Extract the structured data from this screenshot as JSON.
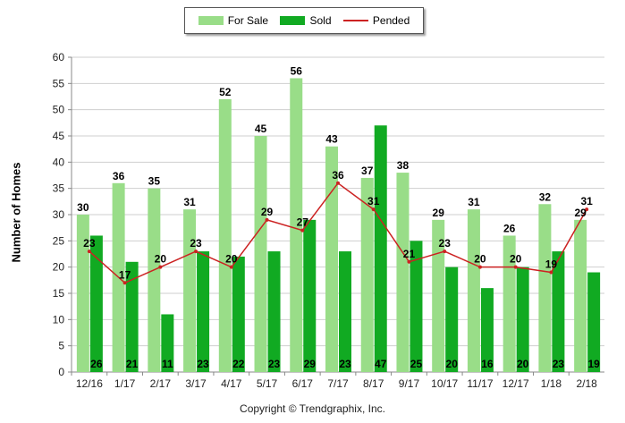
{
  "chart_data": {
    "type": "bar",
    "categories": [
      "12/16",
      "1/17",
      "2/17",
      "3/17",
      "4/17",
      "5/17",
      "6/17",
      "7/17",
      "8/17",
      "9/17",
      "10/17",
      "11/17",
      "12/17",
      "1/18",
      "2/18"
    ],
    "series": [
      {
        "name": "For Sale",
        "kind": "bar",
        "color": "#99dd88",
        "values": [
          30,
          36,
          35,
          31,
          52,
          45,
          56,
          43,
          37,
          38,
          29,
          31,
          26,
          32,
          29
        ]
      },
      {
        "name": "Sold",
        "kind": "bar",
        "color": "#11aa22",
        "values": [
          26,
          21,
          11,
          23,
          22,
          23,
          29,
          23,
          47,
          25,
          20,
          16,
          20,
          23,
          19
        ]
      },
      {
        "name": "Pended",
        "kind": "line",
        "color": "#cc2222",
        "values": [
          23,
          17,
          20,
          23,
          20,
          29,
          27,
          36,
          31,
          21,
          23,
          20,
          20,
          19,
          31
        ]
      }
    ],
    "ylabel": "Number of Homes",
    "ylim": [
      0,
      60
    ],
    "yticks": [
      0,
      5,
      10,
      15,
      20,
      25,
      30,
      35,
      40,
      45,
      50,
      55,
      60
    ],
    "grid": true,
    "legend_position": "top-center"
  },
  "footer": "Copyright © Trendgraphix, Inc."
}
